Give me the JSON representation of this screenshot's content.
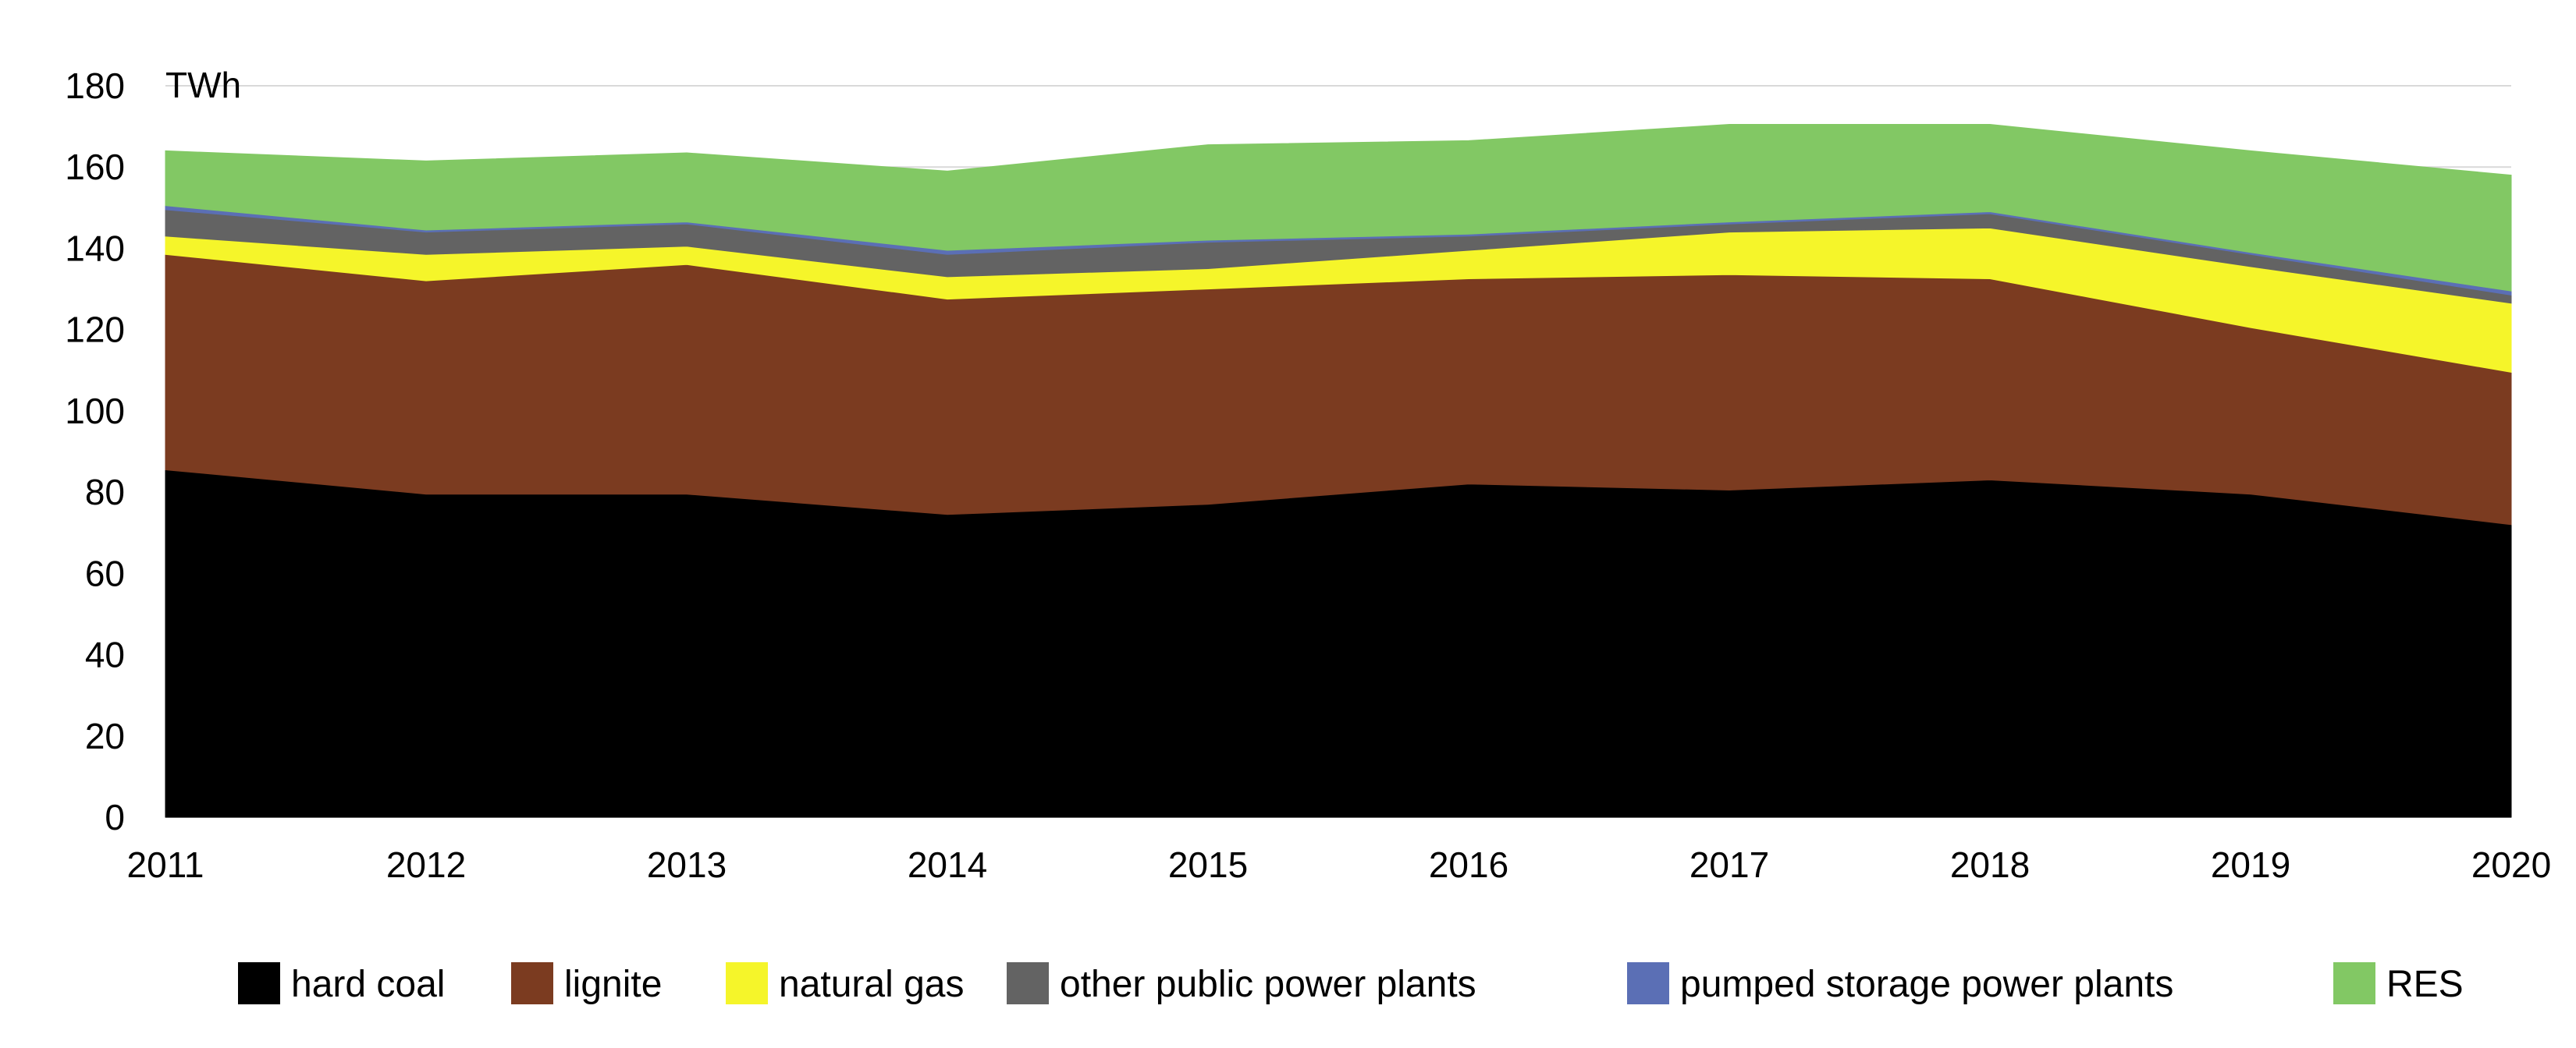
{
  "chart_data": {
    "type": "area",
    "stacked": true,
    "title": "",
    "xlabel": "",
    "ylabel": "",
    "unit": "TWh",
    "x": [
      "2011",
      "2012",
      "2013",
      "2014",
      "2015",
      "2016",
      "2017",
      "2018",
      "2019",
      "2020"
    ],
    "ylim": [
      0,
      180
    ],
    "yticks": [
      "0",
      "20",
      "40",
      "60",
      "80",
      "100",
      "120",
      "140",
      "160",
      "180"
    ],
    "grid": "horizontal",
    "legend_position": "bottom",
    "series": [
      {
        "name": "hard coal",
        "color": "#000000",
        "values": [
          85.5,
          79.5,
          79.5,
          74.5,
          77.0,
          82.0,
          80.5,
          83.0,
          79.5,
          72.0
        ]
      },
      {
        "name": "lignite",
        "color": "#7b3b20",
        "values": [
          53.0,
          52.5,
          56.5,
          53.0,
          53.0,
          50.5,
          53.0,
          49.5,
          41.0,
          37.5
        ]
      },
      {
        "name": "natural gas",
        "color": "#f5f52a",
        "values": [
          4.5,
          6.5,
          4.5,
          5.5,
          5.0,
          7.0,
          10.5,
          12.5,
          15.0,
          17.0
        ]
      },
      {
        "name": "other public power plants",
        "color": "#636363",
        "values": [
          6.5,
          5.5,
          5.5,
          5.5,
          6.5,
          3.5,
          2.0,
          3.5,
          3.0,
          2.0
        ]
      },
      {
        "name": "pumped storage power plants",
        "color": "#5b6fb5",
        "values": [
          1.0,
          0.5,
          0.5,
          1.0,
          0.5,
          0.5,
          0.5,
          0.5,
          0.5,
          1.0
        ]
      },
      {
        "name": "RES",
        "color": "#82c864",
        "values": [
          13.5,
          17.0,
          17.0,
          19.5,
          23.5,
          23.0,
          24.0,
          21.5,
          25.0,
          28.5
        ]
      }
    ]
  }
}
